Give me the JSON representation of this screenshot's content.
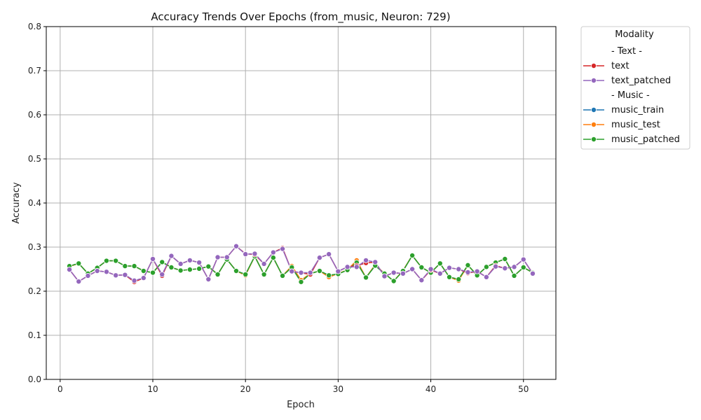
{
  "chart_data": {
    "type": "line",
    "title": "Accuracy Trends Over Epochs (from_music, Neuron: 729)",
    "xlabel": "Epoch",
    "ylabel": "Accuracy",
    "xlim": [
      -1.5,
      53.5
    ],
    "ylim": [
      0.0,
      0.8
    ],
    "xticks": [
      0,
      10,
      20,
      30,
      40,
      50
    ],
    "yticks": [
      0.0,
      0.1,
      0.2,
      0.3,
      0.4,
      0.5,
      0.6,
      0.7,
      0.8
    ],
    "ytick_labels": [
      "0.0",
      "0.1",
      "0.2",
      "0.3",
      "0.4",
      "0.5",
      "0.6",
      "0.7",
      "0.8"
    ],
    "grid": true,
    "legend_placement": "outside-top-right",
    "legend": {
      "title": "Modality",
      "entries": [
        {
          "label": "- Text -",
          "header": true
        },
        {
          "label": "text",
          "color": "#d62728"
        },
        {
          "label": "text_patched",
          "color": "#9467bd"
        },
        {
          "label": "- Music -",
          "header": true
        },
        {
          "label": "music_train",
          "color": "#1f77b4"
        },
        {
          "label": "music_test",
          "color": "#ff7f0e"
        },
        {
          "label": "music_patched",
          "color": "#2ca02c"
        }
      ]
    },
    "x": [
      1,
      2,
      3,
      4,
      5,
      6,
      7,
      8,
      9,
      10,
      11,
      12,
      13,
      14,
      15,
      16,
      17,
      18,
      19,
      20,
      21,
      22,
      23,
      24,
      25,
      26,
      27,
      28,
      29,
      30,
      31,
      32,
      33,
      34,
      35,
      36,
      37,
      38,
      39,
      40,
      41,
      42,
      43,
      44,
      45,
      46,
      47,
      48,
      49,
      50,
      51
    ],
    "series": [
      {
        "name": "music_train",
        "color": "#1f77b4",
        "values": [
          0.257,
          0.263,
          0.24,
          0.253,
          0.269,
          0.269,
          0.257,
          0.257,
          0.246,
          0.242,
          0.266,
          0.254,
          0.247,
          0.249,
          0.251,
          0.256,
          0.238,
          0.272,
          0.246,
          0.238,
          0.279,
          0.238,
          0.276,
          0.235,
          0.254,
          0.221,
          0.24,
          0.246,
          0.236,
          0.239,
          0.248,
          0.265,
          0.231,
          0.258,
          0.24,
          0.223,
          0.246,
          0.281,
          0.254,
          0.242,
          0.263,
          0.232,
          0.227,
          0.259,
          0.236,
          0.255,
          0.265,
          0.273,
          0.235,
          0.254,
          0.242
        ]
      },
      {
        "name": "music_test",
        "color": "#ff7f0e",
        "values": [
          0.256,
          0.263,
          0.24,
          0.253,
          0.269,
          0.269,
          0.257,
          0.257,
          0.246,
          0.242,
          0.266,
          0.254,
          0.247,
          0.249,
          0.251,
          0.256,
          0.238,
          0.272,
          0.246,
          0.236,
          0.279,
          0.238,
          0.276,
          0.235,
          0.257,
          0.225,
          0.24,
          0.246,
          0.232,
          0.24,
          0.248,
          0.27,
          0.231,
          0.26,
          0.24,
          0.223,
          0.247,
          0.281,
          0.254,
          0.242,
          0.263,
          0.232,
          0.224,
          0.259,
          0.236,
          0.255,
          0.265,
          0.273,
          0.235,
          0.254,
          0.242
        ]
      },
      {
        "name": "music_patched",
        "color": "#2ca02c",
        "values": [
          0.257,
          0.263,
          0.24,
          0.253,
          0.269,
          0.269,
          0.257,
          0.257,
          0.246,
          0.242,
          0.266,
          0.254,
          0.247,
          0.249,
          0.251,
          0.256,
          0.238,
          0.272,
          0.246,
          0.238,
          0.279,
          0.238,
          0.276,
          0.235,
          0.254,
          0.221,
          0.24,
          0.246,
          0.236,
          0.239,
          0.248,
          0.265,
          0.231,
          0.258,
          0.24,
          0.223,
          0.246,
          0.281,
          0.254,
          0.242,
          0.263,
          0.232,
          0.227,
          0.259,
          0.236,
          0.255,
          0.265,
          0.273,
          0.235,
          0.254,
          0.242
        ]
      },
      {
        "name": "text",
        "color": "#d62728",
        "values": [
          0.249,
          0.222,
          0.235,
          0.246,
          0.244,
          0.236,
          0.237,
          0.221,
          0.23,
          0.273,
          0.235,
          0.28,
          0.262,
          0.27,
          0.265,
          0.227,
          0.277,
          0.277,
          0.302,
          0.285,
          0.283,
          0.262,
          0.288,
          0.298,
          0.245,
          0.242,
          0.238,
          0.276,
          0.284,
          0.245,
          0.255,
          0.258,
          0.264,
          0.266,
          0.234,
          0.242,
          0.24,
          0.25,
          0.225,
          0.248,
          0.24,
          0.253,
          0.25,
          0.241,
          0.245,
          0.232,
          0.258,
          0.252,
          0.255,
          0.272,
          0.24
        ]
      },
      {
        "name": "text_patched",
        "color": "#9467bd",
        "values": [
          0.249,
          0.222,
          0.235,
          0.246,
          0.244,
          0.236,
          0.237,
          0.224,
          0.23,
          0.273,
          0.238,
          0.28,
          0.262,
          0.27,
          0.265,
          0.227,
          0.277,
          0.277,
          0.302,
          0.284,
          0.285,
          0.262,
          0.288,
          0.296,
          0.245,
          0.242,
          0.242,
          0.276,
          0.284,
          0.245,
          0.255,
          0.255,
          0.27,
          0.266,
          0.234,
          0.242,
          0.24,
          0.25,
          0.225,
          0.25,
          0.24,
          0.253,
          0.25,
          0.243,
          0.245,
          0.232,
          0.256,
          0.252,
          0.255,
          0.272,
          0.24
        ]
      }
    ]
  }
}
